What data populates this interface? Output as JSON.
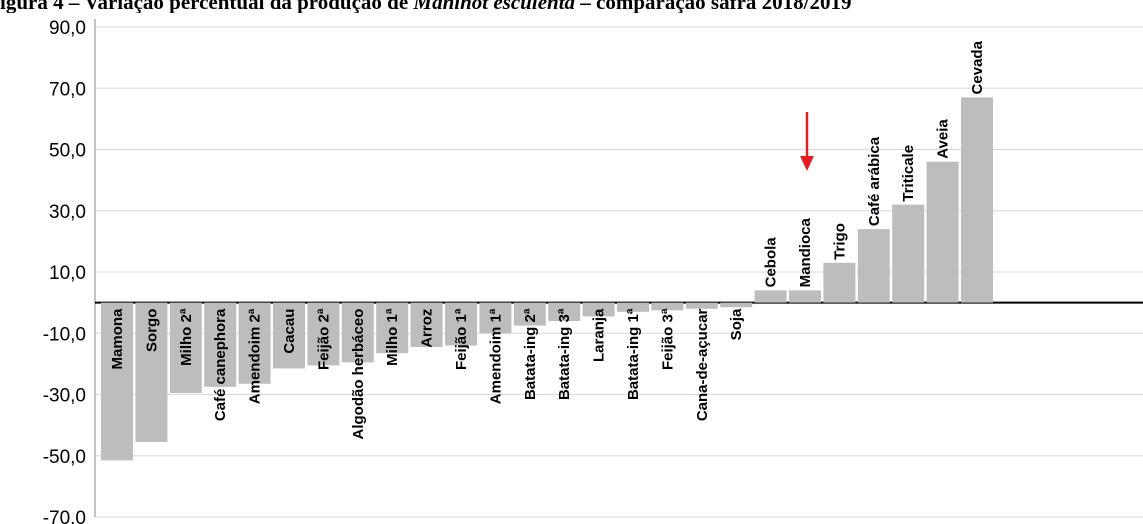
{
  "title": {
    "prefix": "igura 4 – Variação percentual da produção de ",
    "species": "Manihot esculenta",
    "suffix": " – comparação safra 2018/2019"
  },
  "chart_data": {
    "type": "bar",
    "title": "igura 4 – Variação percentual da produção de Manihot esculenta – comparação safra 2018/2019",
    "xlabel": "",
    "ylabel": "",
    "ylim": [
      -70,
      90
    ],
    "yticks": [
      90,
      70,
      50,
      30,
      10,
      -10,
      -30,
      -50,
      -70
    ],
    "ytick_labels": [
      "90,0",
      "70,0",
      "50,0",
      "30,0",
      "10,0",
      "-10,0",
      "-30,0",
      "-50,0",
      "-70,0"
    ],
    "grid": true,
    "legend": "none",
    "bar_color": "#bdbdbd",
    "grid_color": "#d6d6f2",
    "axis_color": "#000000",
    "categories": [
      "Mamona",
      "Sorgo",
      "Milho 2ª",
      "Café canephora",
      "Amendoim 2ª",
      "Cacau",
      "Feijão 2ª",
      "Algodão herbáceo",
      "Milho 1ª",
      "Arroz",
      "Feijão 1ª",
      "Amendoim 1ª",
      "Batata-ing 2ª",
      "Batata-ing 3ª",
      "Laranja",
      "Batata-ing 1ª",
      "Feijão 3ª",
      "Cana-de-açucar",
      "Soja",
      "Cebola",
      "Mandioca",
      "Trigo",
      "Café arábica",
      "Triticale",
      "Aveia",
      "Cevada"
    ],
    "values": [
      -51.5,
      -45.5,
      -29.5,
      -27.5,
      -26.5,
      -21.5,
      -20.5,
      -19.5,
      -16.5,
      -14.5,
      -14.0,
      -10.0,
      -7.5,
      -6.0,
      -4.5,
      -3.0,
      -2.5,
      -2.0,
      -1.5,
      4.0,
      4.0,
      13.0,
      24.0,
      32.0,
      46.0,
      67.0
    ],
    "annotation": {
      "type": "arrow",
      "target": "Mandioca",
      "color": "#e02020"
    }
  }
}
